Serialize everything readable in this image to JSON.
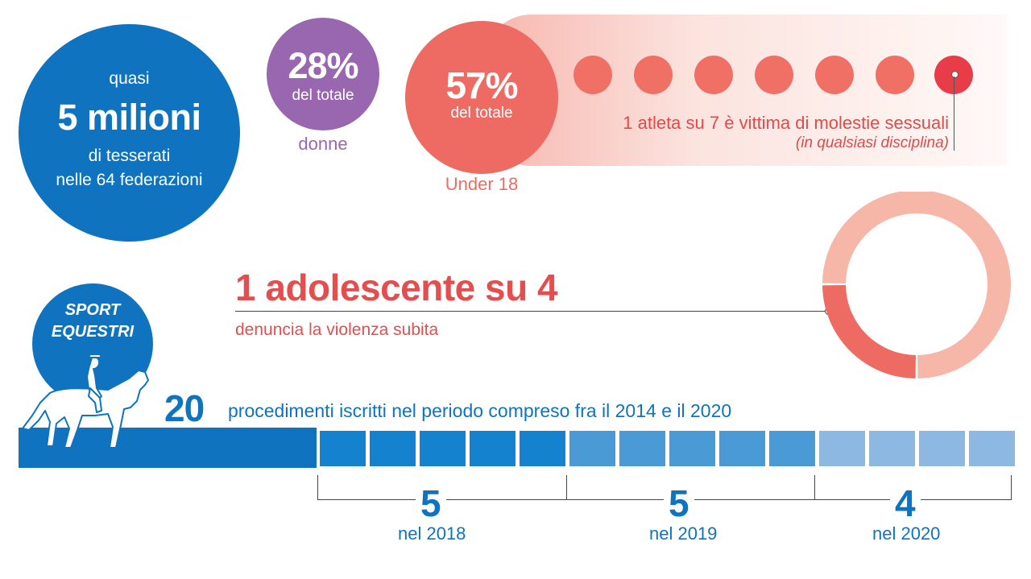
{
  "tesserati": {
    "pre": "quasi",
    "big": "5 milioni",
    "sub1": "di tesserati",
    "sub2": "nelle 64 federazioni",
    "color": "#0f73c0"
  },
  "donne": {
    "pct": "28%",
    "label": "del totale",
    "caption": "donne",
    "color": "#9966b0"
  },
  "under18": {
    "pct": "57%",
    "label": "del totale",
    "caption": "Under 18",
    "color": "#ee6b63"
  },
  "athlete": {
    "dots_total": 7,
    "dots_highlight": 1,
    "text": "1 atleta su 7 è vittima di molestie sessuali",
    "sub": "(in qualsiasi disciplina)",
    "color_dot": "#f07066",
    "color_active": "#e83c49"
  },
  "adolescente": {
    "title": "1 adolescente su 4",
    "sub": "denuncia la violenza subita",
    "fraction": 0.25,
    "color_fill": "#ee6b63",
    "color_rest": "#f6b6a8"
  },
  "equestri": {
    "line1": "SPORT",
    "line2": "EQUESTRI",
    "procedimenti_num": "20",
    "procedimenti_text": "procedimenti iscritti nel periodo compreso fra il 2014 e il 2020"
  },
  "years": [
    {
      "num": "5",
      "label": "nel 2018",
      "count": 5,
      "color": "#1582cf"
    },
    {
      "num": "5",
      "label": "nel 2019",
      "count": 5,
      "color": "#4a9ad6"
    },
    {
      "num": "4",
      "label": "nel 2020",
      "count": 4,
      "color": "#8db8e2"
    }
  ]
}
